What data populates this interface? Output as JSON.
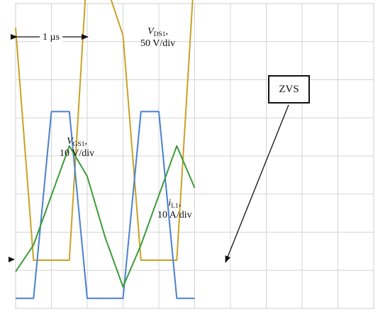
{
  "chart_data": {
    "type": "line",
    "title": "",
    "grid": true,
    "x_divisions": 10,
    "y_divisions": 8,
    "x": [
      0,
      0.5,
      1.0,
      1.5,
      2.0,
      2.5,
      3.0,
      3.5,
      4.0,
      4.5,
      5.0
    ],
    "series": [
      {
        "name_parts": [
          "V",
          "DS1",
          ", "
        ],
        "scale": "50 V/div",
        "color": "#c9a227",
        "values": [
          6.1,
          0.0,
          0.0,
          0.0,
          7.7,
          7.3,
          5.9,
          0.0,
          0.0,
          0.0,
          7.7
        ]
      },
      {
        "name_parts": [
          "V",
          "GS1",
          ","
        ],
        "scale": "10 V/div",
        "color": "#4a80d0",
        "values": [
          -1.0,
          -1.0,
          3.9,
          3.9,
          -1.0,
          -1.0,
          -1.0,
          3.9,
          3.9,
          -1.0,
          -1.0
        ]
      },
      {
        "name_parts": [
          "i",
          "L1",
          ","
        ],
        "scale": "10 A/div",
        "color": "#3e9b3a",
        "values": [
          -0.3,
          0.4,
          1.7,
          3.0,
          2.2,
          0.6,
          -0.7,
          0.4,
          1.7,
          3.0,
          1.9
        ]
      }
    ],
    "annotations": {
      "time_scale": "1 µs",
      "zvs_label": "ZVS"
    }
  }
}
